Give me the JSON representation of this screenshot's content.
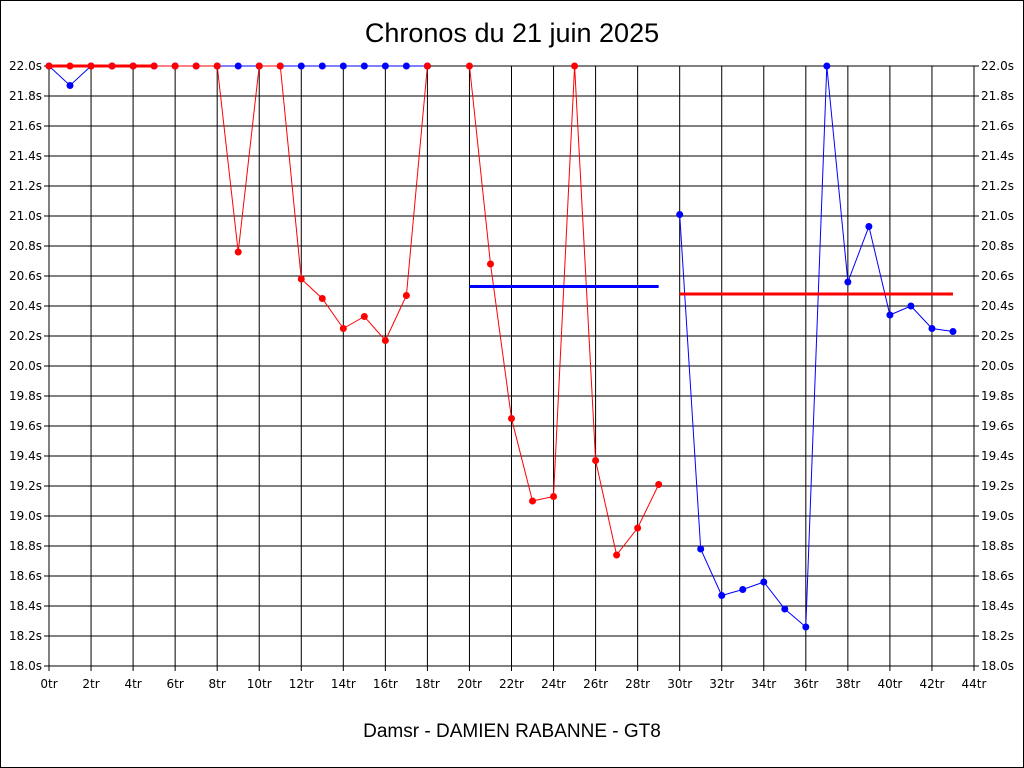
{
  "chart_data": {
    "type": "line",
    "title": "Chronos du 21 juin 2025",
    "subtitle": "Damsr - DAMIEN RABANNE - GT8",
    "xlabel": "",
    "ylabel": "",
    "xlim": [
      0,
      44
    ],
    "ylim": [
      18.0,
      22.0
    ],
    "grid": true,
    "x_ticks": [
      "0tr",
      "2tr",
      "4tr",
      "6tr",
      "8tr",
      "10tr",
      "12tr",
      "14tr",
      "16tr",
      "18tr",
      "20tr",
      "22tr",
      "24tr",
      "26tr",
      "28tr",
      "30tr",
      "32tr",
      "34tr",
      "36tr",
      "38tr",
      "40tr",
      "42tr",
      "44tr"
    ],
    "y_ticks": [
      "22.0s",
      "21.8s",
      "21.6s",
      "21.4s",
      "21.2s",
      "21.0s",
      "20.8s",
      "20.6s",
      "20.4s",
      "20.2s",
      "20.0s",
      "19.8s",
      "19.6s",
      "19.4s",
      "19.2s",
      "19.0s",
      "18.8s",
      "18.6s",
      "18.4s",
      "18.2s",
      "18.0s"
    ],
    "series": [
      {
        "color": "#0000ff",
        "segments": [
          [
            [
              0,
              22.0
            ],
            [
              1,
              21.87
            ],
            [
              2,
              22.0
            ],
            [
              3,
              22.0
            ],
            [
              4,
              22.0
            ],
            [
              5,
              22.0
            ],
            [
              6,
              22.0
            ],
            [
              7,
              22.0
            ],
            [
              8,
              22.0
            ],
            [
              9,
              22.0
            ],
            [
              10,
              22.0
            ],
            [
              11,
              22.0
            ],
            [
              12,
              22.0
            ],
            [
              13,
              22.0
            ],
            [
              14,
              22.0
            ],
            [
              15,
              22.0
            ],
            [
              16,
              22.0
            ],
            [
              17,
              22.0
            ],
            [
              18,
              22.0
            ]
          ],
          [
            [
              30,
              21.01
            ],
            [
              31,
              18.78
            ],
            [
              32,
              18.47
            ],
            [
              33,
              18.51
            ],
            [
              34,
              18.56
            ],
            [
              35,
              18.38
            ],
            [
              36,
              18.26
            ],
            [
              37,
              22.0
            ],
            [
              38,
              20.56
            ],
            [
              39,
              20.93
            ],
            [
              40,
              20.34
            ],
            [
              41,
              20.4
            ],
            [
              42,
              20.25
            ],
            [
              43,
              20.23
            ]
          ]
        ]
      },
      {
        "color": "#ff0000",
        "segments": [
          [
            [
              0,
              22.0
            ],
            [
              1,
              22.0
            ],
            [
              2,
              22.0
            ],
            [
              3,
              22.0
            ],
            [
              4,
              22.0
            ],
            [
              5,
              22.0
            ],
            [
              6,
              22.0
            ],
            [
              7,
              22.0
            ],
            [
              8,
              22.0
            ],
            [
              9,
              20.76
            ],
            [
              10,
              22.0
            ],
            [
              11,
              22.0
            ],
            [
              12,
              20.58
            ],
            [
              13,
              20.45
            ],
            [
              14,
              20.25
            ],
            [
              15,
              20.33
            ],
            [
              16,
              20.17
            ],
            [
              17,
              20.47
            ],
            [
              18,
              22.0
            ]
          ],
          [
            [
              20,
              22.0
            ],
            [
              21,
              20.68
            ],
            [
              22,
              19.65
            ],
            [
              23,
              19.1
            ],
            [
              24,
              19.13
            ],
            [
              25,
              22.0
            ],
            [
              26,
              19.37
            ],
            [
              27,
              18.74
            ],
            [
              28,
              18.92
            ],
            [
              29,
              19.21
            ]
          ]
        ]
      }
    ],
    "reference_lines": [
      {
        "color": "#ff0000",
        "x": [
          0,
          5
        ],
        "y": 22.0
      },
      {
        "color": "#0000ff",
        "x": [
          20,
          29
        ],
        "y": 20.53
      },
      {
        "color": "#ff0000",
        "x": [
          30,
          43
        ],
        "y": 20.48
      }
    ]
  }
}
